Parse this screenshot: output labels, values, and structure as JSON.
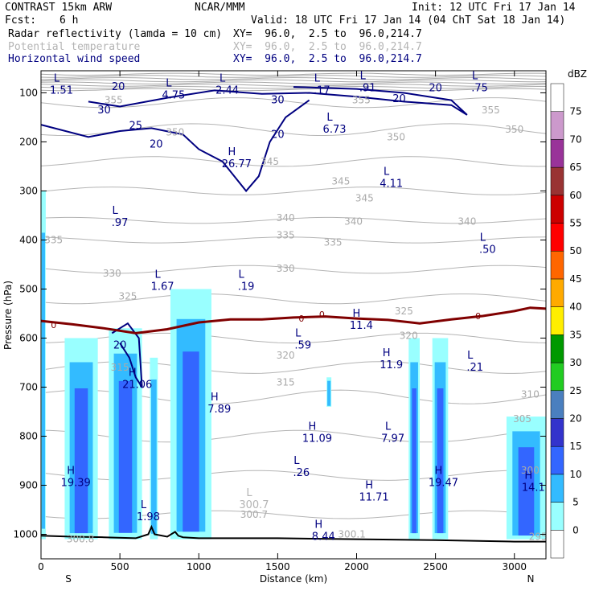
{
  "header": {
    "model": "CONTRAST 15km ARW",
    "org": "NCAR/MMM",
    "init": "Init: 12 UTC Fri 17 Jan 14",
    "fcst_label": "Fcst:",
    "fcst_value": "6 h",
    "valid": "Valid: 18 UTC Fri 17 Jan 14 (04 ChT Sat 18 Jan 14)"
  },
  "fields": [
    {
      "name": "Radar reflectivity (lamda = 10 cm)",
      "xy": "XY=  96.0,  2.5 to  96.0,214.7",
      "color": "#000000"
    },
    {
      "name": "Potential temperature",
      "xy": "XY=  96.0,  2.5 to  96.0,214.7",
      "color": "#b4b4b4"
    },
    {
      "name": "Horizontal wind speed",
      "xy": "XY=  96.0,  2.5 to  96.0,214.7",
      "color": "#000080"
    }
  ],
  "chart_data": {
    "type": "contour-cross-section",
    "xlabel": "Distance (km)",
    "ylabel": "Pressure (hPa)",
    "xlim": [
      0,
      3200
    ],
    "ylim": [
      1050,
      55
    ],
    "x_ticks": [
      0,
      500,
      1000,
      1500,
      2000,
      2500,
      3000
    ],
    "y_ticks": [
      100,
      200,
      300,
      400,
      500,
      600,
      700,
      800,
      900,
      1000
    ],
    "x_end_labels": {
      "left": "S",
      "right": "N"
    },
    "colorbar": {
      "unit": "dBZ",
      "levels": [
        0,
        5,
        10,
        15,
        20,
        25,
        30,
        35,
        40,
        45,
        50,
        55,
        60,
        65,
        70,
        75
      ],
      "colors": [
        "#ffffff",
        "#99ffff",
        "#33bbff",
        "#3366ff",
        "#3333cc",
        "#4a7fbf",
        "#22cc22",
        "#009900",
        "#ffee00",
        "#ffaa00",
        "#ff6600",
        "#ff0000",
        "#cc0000",
        "#993333",
        "#993399",
        "#cc99cc",
        "#ffffff"
      ]
    },
    "reflectivity_cells": [
      {
        "x0": 0,
        "x1": 30,
        "p_top": 300,
        "p_bot": 1010
      },
      {
        "x0": 150,
        "x1": 360,
        "p_top": 600,
        "p_bot": 1010
      },
      {
        "x0": 430,
        "x1": 640,
        "p_top": 580,
        "p_bot": 1010
      },
      {
        "x0": 690,
        "x1": 740,
        "p_top": 640,
        "p_bot": 1010
      },
      {
        "x0": 820,
        "x1": 1080,
        "p_top": 500,
        "p_bot": 1010
      },
      {
        "x0": 1810,
        "x1": 1840,
        "p_top": 680,
        "p_bot": 740
      },
      {
        "x0": 2330,
        "x1": 2400,
        "p_top": 600,
        "p_bot": 1010
      },
      {
        "x0": 2480,
        "x1": 2580,
        "p_top": 600,
        "p_bot": 1010
      },
      {
        "x0": 2950,
        "x1": 3200,
        "p_top": 760,
        "p_bot": 1010
      }
    ],
    "freezing_level": {
      "label": "0",
      "x": [
        0,
        200,
        400,
        600,
        800,
        1000,
        1200,
        1400,
        1600,
        1800,
        2000,
        2200,
        2400,
        2600,
        2800,
        3000,
        3100,
        3200
      ],
      "p": [
        565,
        572,
        580,
        590,
        582,
        568,
        562,
        562,
        558,
        556,
        560,
        563,
        570,
        562,
        555,
        545,
        538,
        540
      ]
    },
    "terrain": {
      "x": [
        0,
        200,
        400,
        600,
        680,
        700,
        720,
        800,
        850,
        870,
        900,
        1000,
        1500,
        2000,
        2500,
        3000,
        3200
      ],
      "p": [
        1003,
        1005,
        1006,
        1008,
        1000,
        985,
        1000,
        1005,
        995,
        1003,
        1006,
        1008,
        1008,
        1010,
        1012,
        1015,
        1015
      ]
    },
    "theta_labels": [
      {
        "text": "355",
        "x": 460,
        "p": 115
      },
      {
        "text": "355",
        "x": 2030,
        "p": 115
      },
      {
        "text": "355",
        "x": 2850,
        "p": 135
      },
      {
        "text": "350",
        "x": 850,
        "p": 180
      },
      {
        "text": "350",
        "x": 2250,
        "p": 190
      },
      {
        "text": "350",
        "x": 3000,
        "p": 175
      },
      {
        "text": "345",
        "x": 1450,
        "p": 240
      },
      {
        "text": "345",
        "x": 1900,
        "p": 280
      },
      {
        "text": "345",
        "x": 2050,
        "p": 315
      },
      {
        "text": "340",
        "x": 1550,
        "p": 355
      },
      {
        "text": "340",
        "x": 1980,
        "p": 362
      },
      {
        "text": "340",
        "x": 2700,
        "p": 362
      },
      {
        "text": "335",
        "x": 80,
        "p": 400
      },
      {
        "text": "335",
        "x": 1550,
        "p": 390
      },
      {
        "text": "335",
        "x": 1850,
        "p": 405
      },
      {
        "text": "330",
        "x": 450,
        "p": 468
      },
      {
        "text": "330",
        "x": 1550,
        "p": 458
      },
      {
        "text": "325",
        "x": 550,
        "p": 515
      },
      {
        "text": "325",
        "x": 2300,
        "p": 545
      },
      {
        "text": "320",
        "x": 1550,
        "p": 635
      },
      {
        "text": "320",
        "x": 2330,
        "p": 595
      },
      {
        "text": "315",
        "x": 500,
        "p": 660
      },
      {
        "text": "315",
        "x": 1550,
        "p": 690
      },
      {
        "text": "310",
        "x": 3100,
        "p": 715
      },
      {
        "text": "305",
        "x": 3050,
        "p": 765
      },
      {
        "text": "300",
        "x": 3100,
        "p": 870
      },
      {
        "text": "300.7",
        "x": 1350,
        "p": 960
      },
      {
        "text": "300.1",
        "x": 1970,
        "p": 1000
      },
      {
        "text": "300.8",
        "x": 250,
        "p": 1010
      },
      {
        "text": "295",
        "x": 3150,
        "p": 1005
      }
    ],
    "wind_labels": [
      {
        "text": "20",
        "x": 490,
        "p": 88
      },
      {
        "text": "30",
        "x": 400,
        "p": 135
      },
      {
        "text": "25",
        "x": 600,
        "p": 167
      },
      {
        "text": "20",
        "x": 730,
        "p": 205
      },
      {
        "text": "30",
        "x": 1500,
        "p": 115
      },
      {
        "text": "20",
        "x": 1500,
        "p": 185
      },
      {
        "text": "20",
        "x": 2270,
        "p": 112
      },
      {
        "text": "20",
        "x": 2500,
        "p": 90
      },
      {
        "text": "20",
        "x": 500,
        "p": 615
      }
    ],
    "freezing_labels": [
      {
        "text": "0",
        "x": 80,
        "p": 573
      },
      {
        "text": "0",
        "x": 1650,
        "p": 560
      },
      {
        "text": "0",
        "x": 1780,
        "p": 552
      },
      {
        "text": "0",
        "x": 2770,
        "p": 555
      }
    ],
    "extrema_labels": [
      {
        "type": "L",
        "value": "1.51",
        "x": 130,
        "p": 90,
        "color": "#000080"
      },
      {
        "type": "L",
        "value": "4.75",
        "x": 840,
        "p": 100,
        "color": "#000080"
      },
      {
        "type": "L",
        "value": "2.44",
        "x": 1180,
        "p": 90,
        "color": "#000080"
      },
      {
        "type": "L",
        "value": ".17",
        "x": 1780,
        "p": 90,
        "color": "#000080"
      },
      {
        "type": "L",
        "value": ".91",
        "x": 2070,
        "p": 85,
        "color": "#000080"
      },
      {
        "type": "L",
        "value": ".75",
        "x": 2780,
        "p": 85,
        "color": "#000080"
      },
      {
        "type": "L",
        "value": "6.73",
        "x": 1860,
        "p": 170,
        "color": "#000080"
      },
      {
        "type": "H",
        "value": "26.77",
        "x": 1240,
        "p": 240,
        "color": "#000080"
      },
      {
        "type": "L",
        "value": "4.11",
        "x": 2220,
        "p": 280,
        "color": "#000080"
      },
      {
        "type": "L",
        "value": ".97",
        "x": 500,
        "p": 360,
        "color": "#000080"
      },
      {
        "type": "L",
        "value": ".50",
        "x": 2830,
        "p": 415,
        "color": "#000080"
      },
      {
        "type": "L",
        "value": "1.67",
        "x": 770,
        "p": 490,
        "color": "#000080"
      },
      {
        "type": "L",
        "value": ".19",
        "x": 1300,
        "p": 490,
        "color": "#000080"
      },
      {
        "type": "H",
        "value": "11.4",
        "x": 2030,
        "p": 570,
        "color": "#000080"
      },
      {
        "type": "L",
        "value": ".59",
        "x": 1660,
        "p": 610,
        "color": "#000080"
      },
      {
        "type": "H",
        "value": "11.9",
        "x": 2220,
        "p": 650,
        "color": "#000080"
      },
      {
        "type": "L",
        "value": ".21",
        "x": 2750,
        "p": 655,
        "color": "#000080"
      },
      {
        "type": "H",
        "value": "21.06",
        "x": 610,
        "p": 690,
        "color": "#000080"
      },
      {
        "type": "H",
        "value": "7.89",
        "x": 1130,
        "p": 740,
        "color": "#000080"
      },
      {
        "type": "H",
        "value": "11.09",
        "x": 1750,
        "p": 800,
        "color": "#000080"
      },
      {
        "type": "L",
        "value": "7.97",
        "x": 2230,
        "p": 800,
        "color": "#000080"
      },
      {
        "type": "L",
        "value": ".26",
        "x": 1650,
        "p": 870,
        "color": "#000080"
      },
      {
        "type": "H",
        "value": "19.39",
        "x": 220,
        "p": 890,
        "color": "#000080"
      },
      {
        "type": "H",
        "value": "19.47",
        "x": 2550,
        "p": 890,
        "color": "#000080"
      },
      {
        "type": "H",
        "value": "14.1",
        "x": 3120,
        "p": 900,
        "color": "#000080"
      },
      {
        "type": "H",
        "value": "11.71",
        "x": 2110,
        "p": 920,
        "color": "#000080"
      },
      {
        "type": "L",
        "value": "1.98",
        "x": 680,
        "p": 960,
        "color": "#000080"
      },
      {
        "type": "H",
        "value": "8.44",
        "x": 1790,
        "p": 1000,
        "color": "#000080"
      },
      {
        "type": "L",
        "value": "300.7",
        "x": 1350,
        "p": 935,
        "color": "#b4b4b4"
      }
    ]
  }
}
